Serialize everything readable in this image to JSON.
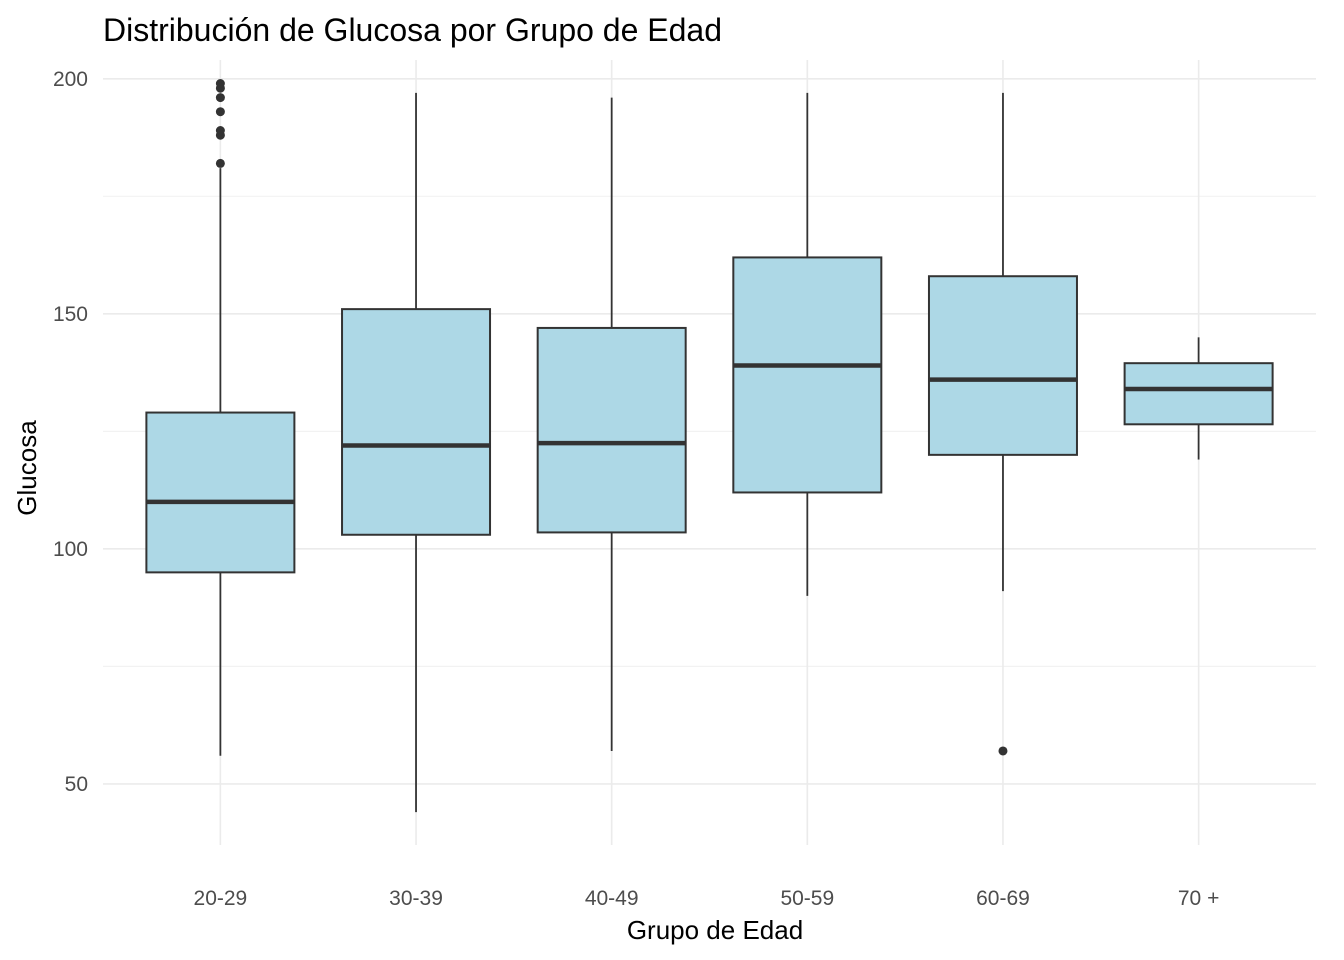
{
  "chart_data": {
    "type": "boxplot",
    "title": "Distribución de Glucosa por Grupo de Edad",
    "xlabel": "Grupo de Edad",
    "ylabel": "Glucosa",
    "categories": [
      "20-29",
      "30-39",
      "40-49",
      "50-59",
      "60-69",
      "70 +"
    ],
    "y_ticks": [
      50,
      100,
      150,
      200
    ],
    "y_tick_labels": [
      "50",
      "100",
      "150",
      "200"
    ],
    "ylim": [
      37,
      204
    ],
    "grid": true,
    "legend": "none",
    "colors": {
      "box_fill": "#add8e6",
      "box_stroke": "#333333",
      "outlier": "#333333"
    },
    "boxes": [
      {
        "category": "20-29",
        "whisker_low": 56,
        "q1": 95,
        "median": 110,
        "q3": 129,
        "whisker_high": 181,
        "outliers": [
          182,
          188,
          189,
          193,
          196,
          198,
          199
        ]
      },
      {
        "category": "30-39",
        "whisker_low": 44,
        "q1": 103,
        "median": 122,
        "q3": 151,
        "whisker_high": 197,
        "outliers": []
      },
      {
        "category": "40-49",
        "whisker_low": 57,
        "q1": 103.5,
        "median": 122.5,
        "q3": 147,
        "whisker_high": 196,
        "outliers": []
      },
      {
        "category": "50-59",
        "whisker_low": 90,
        "q1": 112,
        "median": 139,
        "q3": 162,
        "whisker_high": 197,
        "outliers": []
      },
      {
        "category": "60-69",
        "whisker_low": 91,
        "q1": 120,
        "median": 136,
        "q3": 158,
        "whisker_high": 197,
        "outliers": [
          57
        ]
      },
      {
        "category": "70 +",
        "whisker_low": 119,
        "q1": 126.5,
        "median": 134,
        "q3": 139.5,
        "whisker_high": 145,
        "outliers": []
      }
    ]
  }
}
